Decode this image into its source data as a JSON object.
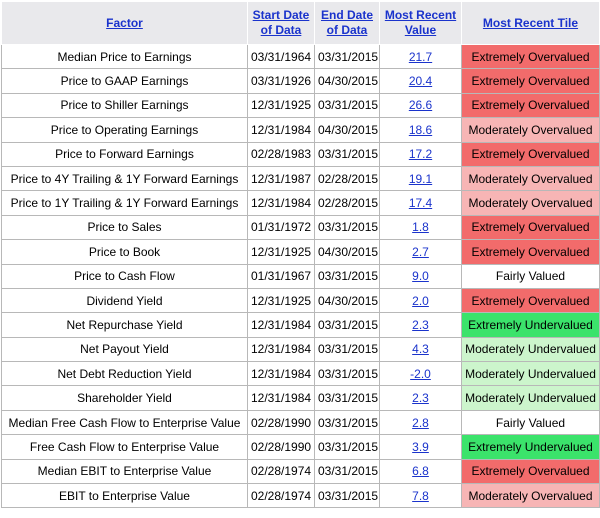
{
  "table": {
    "headers": [
      "Factor",
      "Start Date of Data",
      "End Date of Data",
      "Most Recent Value",
      "Most Recent Tile"
    ],
    "rows": [
      {
        "factor": "Median Price to Earnings",
        "start": "03/31/1964",
        "end": "03/31/2015",
        "value": "21.7",
        "tile": "Extremely Overvalued",
        "tile_color": "#f26b6b"
      },
      {
        "factor": "Price to GAAP Earnings",
        "start": "03/31/1926",
        "end": "04/30/2015",
        "value": "20.4",
        "tile": "Extremely Overvalued",
        "tile_color": "#f26b6b"
      },
      {
        "factor": "Price to Shiller Earnings",
        "start": "12/31/1925",
        "end": "03/31/2015",
        "value": "26.6",
        "tile": "Extremely Overvalued",
        "tile_color": "#f26b6b"
      },
      {
        "factor": "Price to Operating Earnings",
        "start": "12/31/1984",
        "end": "04/30/2015",
        "value": "18.6",
        "tile": "Moderately Overvalued",
        "tile_color": "#f7b5b5"
      },
      {
        "factor": "Price to Forward Earnings",
        "start": "02/28/1983",
        "end": "03/31/2015",
        "value": "17.2",
        "tile": "Extremely Overvalued",
        "tile_color": "#f26b6b"
      },
      {
        "factor": "Price to 4Y Trailing & 1Y Forward Earnings",
        "start": "12/31/1987",
        "end": "02/28/2015",
        "value": "19.1",
        "tile": "Moderately Overvalued",
        "tile_color": "#f7b5b5"
      },
      {
        "factor": "Price to 1Y Trailing & 1Y Forward Earnings",
        "start": "12/31/1984",
        "end": "02/28/2015",
        "value": "17.4",
        "tile": "Moderately Overvalued",
        "tile_color": "#f7b5b5"
      },
      {
        "factor": "Price to Sales",
        "start": "01/31/1972",
        "end": "03/31/2015",
        "value": "1.8",
        "tile": "Extremely Overvalued",
        "tile_color": "#f26b6b"
      },
      {
        "factor": "Price to Book",
        "start": "12/31/1925",
        "end": "04/30/2015",
        "value": "2.7",
        "tile": "Extremely Overvalued",
        "tile_color": "#f26b6b"
      },
      {
        "factor": "Price to Cash Flow",
        "start": "01/31/1967",
        "end": "03/31/2015",
        "value": "9.0",
        "tile": "Fairly Valued",
        "tile_color": "#ffffff"
      },
      {
        "factor": "Dividend Yield",
        "start": "12/31/1925",
        "end": "04/30/2015",
        "value": "2.0",
        "tile": "Extremely Overvalued",
        "tile_color": "#f26b6b"
      },
      {
        "factor": "Net Repurchase Yield",
        "start": "12/31/1984",
        "end": "03/31/2015",
        "value": "2.3",
        "tile": "Extremely Undervalued",
        "tile_color": "#3be36b"
      },
      {
        "factor": "Net Payout Yield",
        "start": "12/31/1984",
        "end": "03/31/2015",
        "value": "4.3",
        "tile": "Moderately Undervalued",
        "tile_color": "#ccf5cc"
      },
      {
        "factor": "Net Debt Reduction Yield",
        "start": "12/31/1984",
        "end": "03/31/2015",
        "value": "-2.0",
        "tile": "Moderately Undervalued",
        "tile_color": "#ccf5cc"
      },
      {
        "factor": "Shareholder Yield",
        "start": "12/31/1984",
        "end": "03/31/2015",
        "value": "2.3",
        "tile": "Moderately Undervalued",
        "tile_color": "#ccf5cc"
      },
      {
        "factor": "Median Free Cash Flow to Enterprise Value",
        "start": "02/28/1990",
        "end": "03/31/2015",
        "value": "2.8",
        "tile": "Fairly Valued",
        "tile_color": "#ffffff"
      },
      {
        "factor": "Free Cash Flow to Enterprise Value",
        "start": "02/28/1990",
        "end": "03/31/2015",
        "value": "3.9",
        "tile": "Extremely Undervalued",
        "tile_color": "#3be36b"
      },
      {
        "factor": "Median EBIT to Enterprise Value",
        "start": "02/28/1974",
        "end": "03/31/2015",
        "value": "6.8",
        "tile": "Extremely Overvalued",
        "tile_color": "#f26b6b"
      },
      {
        "factor": "EBIT to Enterprise Value",
        "start": "02/28/1974",
        "end": "03/31/2015",
        "value": "7.8",
        "tile": "Moderately Overvalued",
        "tile_color": "#f7b5b5"
      }
    ]
  }
}
